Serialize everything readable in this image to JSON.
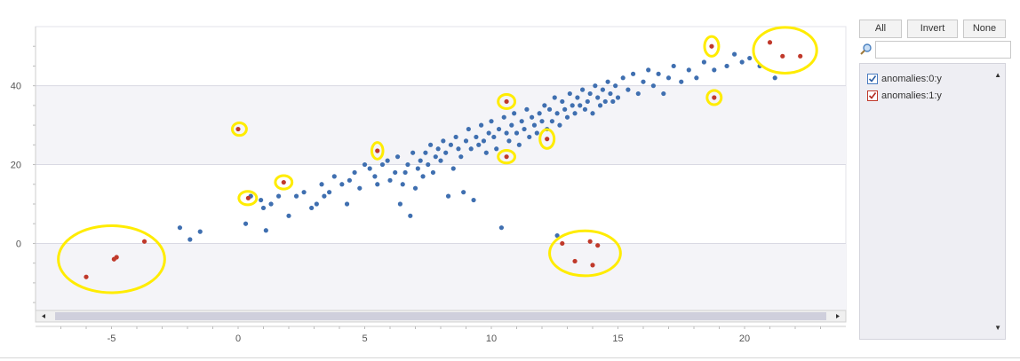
{
  "panel": {
    "all_label": "All",
    "invert_label": "Invert",
    "none_label": "None",
    "search_placeholder": "",
    "series": [
      {
        "name": "anomalies:0:y",
        "checked": true,
        "check_color": "#4a7cc0"
      },
      {
        "name": "anomalies:1:y",
        "checked": true,
        "check_color": "#c0392b"
      }
    ]
  },
  "colors": {
    "normal": "#3f6fb0",
    "anomaly": "#c0392b",
    "highlight": "#ffec00",
    "band": "#f4f4f8",
    "grid": "#d9d9e3"
  },
  "chart_data": {
    "type": "scatter",
    "xlim": [
      -8,
      24
    ],
    "ylim": [
      -17,
      55
    ],
    "xticks": [
      -5,
      0,
      5,
      10,
      15,
      20
    ],
    "yticks": [
      0,
      20,
      40
    ],
    "grid": true,
    "legend": "side-panel",
    "series": [
      {
        "name": "anomalies:0:y",
        "points": [
          [
            -2.3,
            4
          ],
          [
            -1.9,
            1
          ],
          [
            -1.5,
            3
          ],
          [
            0.3,
            5
          ],
          [
            0.5,
            12
          ],
          [
            0.9,
            11
          ],
          [
            1.3,
            10
          ],
          [
            1.0,
            9
          ],
          [
            1.1,
            3.3
          ],
          [
            1.6,
            12
          ],
          [
            2.0,
            7
          ],
          [
            2.3,
            12
          ],
          [
            2.6,
            13
          ],
          [
            2.9,
            9
          ],
          [
            3.1,
            10
          ],
          [
            3.4,
            12
          ],
          [
            3.3,
            15
          ],
          [
            3.6,
            13
          ],
          [
            3.8,
            17
          ],
          [
            4.1,
            15
          ],
          [
            4.3,
            10
          ],
          [
            4.4,
            16
          ],
          [
            4.6,
            18
          ],
          [
            4.8,
            14
          ],
          [
            5.0,
            20
          ],
          [
            5.2,
            19
          ],
          [
            5.4,
            17
          ],
          [
            5.5,
            15
          ],
          [
            5.7,
            20
          ],
          [
            5.9,
            21
          ],
          [
            6.0,
            16
          ],
          [
            6.2,
            18
          ],
          [
            6.3,
            22
          ],
          [
            6.4,
            10
          ],
          [
            6.5,
            15
          ],
          [
            6.6,
            18
          ],
          [
            6.7,
            20
          ],
          [
            6.8,
            7
          ],
          [
            6.9,
            23
          ],
          [
            7.0,
            14
          ],
          [
            7.1,
            19
          ],
          [
            7.2,
            21
          ],
          [
            7.3,
            17
          ],
          [
            7.4,
            23
          ],
          [
            7.5,
            20
          ],
          [
            7.6,
            25
          ],
          [
            7.7,
            18
          ],
          [
            7.8,
            22
          ],
          [
            7.9,
            24
          ],
          [
            8.0,
            21
          ],
          [
            8.1,
            26
          ],
          [
            8.2,
            23
          ],
          [
            8.3,
            12
          ],
          [
            8.4,
            25
          ],
          [
            8.5,
            19
          ],
          [
            8.6,
            27
          ],
          [
            8.7,
            24
          ],
          [
            8.8,
            22
          ],
          [
            8.9,
            13
          ],
          [
            9.0,
            26
          ],
          [
            9.1,
            29
          ],
          [
            9.2,
            24
          ],
          [
            9.3,
            11
          ],
          [
            9.4,
            27
          ],
          [
            9.5,
            25
          ],
          [
            9.6,
            30
          ],
          [
            9.7,
            26
          ],
          [
            9.8,
            23
          ],
          [
            9.9,
            28
          ],
          [
            10.0,
            31
          ],
          [
            10.1,
            27
          ],
          [
            10.2,
            24
          ],
          [
            10.3,
            29
          ],
          [
            10.4,
            4
          ],
          [
            10.5,
            32
          ],
          [
            10.6,
            28
          ],
          [
            10.7,
            26
          ],
          [
            10.8,
            30
          ],
          [
            10.9,
            33
          ],
          [
            11.0,
            28
          ],
          [
            11.1,
            25
          ],
          [
            11.2,
            31
          ],
          [
            11.3,
            29
          ],
          [
            11.4,
            34
          ],
          [
            11.5,
            27
          ],
          [
            11.6,
            32
          ],
          [
            11.7,
            30
          ],
          [
            11.8,
            28
          ],
          [
            11.9,
            33
          ],
          [
            12.0,
            31
          ],
          [
            12.1,
            35
          ],
          [
            12.2,
            29
          ],
          [
            12.3,
            34
          ],
          [
            12.4,
            31
          ],
          [
            12.5,
            37
          ],
          [
            12.6,
            33
          ],
          [
            12.7,
            30
          ],
          [
            12.8,
            36
          ],
          [
            12.9,
            34
          ],
          [
            13.0,
            32
          ],
          [
            13.1,
            38
          ],
          [
            13.2,
            35
          ],
          [
            13.3,
            33
          ],
          [
            13.4,
            37
          ],
          [
            13.5,
            35
          ],
          [
            13.6,
            39
          ],
          [
            13.7,
            34
          ],
          [
            13.8,
            36
          ],
          [
            13.9,
            38
          ],
          [
            14.0,
            33
          ],
          [
            14.1,
            40
          ],
          [
            14.2,
            37
          ],
          [
            14.3,
            35
          ],
          [
            14.4,
            39
          ],
          [
            14.5,
            36
          ],
          [
            14.6,
            41
          ],
          [
            14.7,
            38
          ],
          [
            14.8,
            36
          ],
          [
            14.9,
            40
          ],
          [
            15.0,
            37
          ],
          [
            15.2,
            42
          ],
          [
            15.4,
            39
          ],
          [
            15.6,
            43
          ],
          [
            15.8,
            38
          ],
          [
            16.0,
            41
          ],
          [
            16.2,
            44
          ],
          [
            16.4,
            40
          ],
          [
            16.6,
            43
          ],
          [
            16.8,
            38
          ],
          [
            17.0,
            42
          ],
          [
            17.2,
            45
          ],
          [
            17.5,
            41
          ],
          [
            17.8,
            44
          ],
          [
            18.1,
            42
          ],
          [
            18.4,
            46
          ],
          [
            18.8,
            44
          ],
          [
            19.3,
            45
          ],
          [
            19.6,
            48
          ],
          [
            19.9,
            46
          ],
          [
            20.2,
            47
          ],
          [
            20.6,
            45
          ],
          [
            21.2,
            42
          ],
          [
            12.6,
            2
          ]
        ]
      },
      {
        "name": "anomalies:1:y",
        "points": [
          [
            -6.0,
            -8.5
          ],
          [
            -4.9,
            -4
          ],
          [
            -4.8,
            -3.5
          ],
          [
            -3.7,
            0.5
          ],
          [
            0.0,
            29
          ],
          [
            0.4,
            11.5
          ],
          [
            1.8,
            15.5
          ],
          [
            5.5,
            23.5
          ],
          [
            10.6,
            36
          ],
          [
            10.6,
            22
          ],
          [
            12.2,
            26.5
          ],
          [
            12.8,
            0
          ],
          [
            13.3,
            -4.5
          ],
          [
            13.9,
            0.5
          ],
          [
            14.0,
            -5.5
          ],
          [
            14.2,
            -0.5
          ],
          [
            18.7,
            50
          ],
          [
            18.8,
            37
          ],
          [
            21.0,
            51
          ],
          [
            21.5,
            47.5
          ],
          [
            22.2,
            47.5
          ]
        ]
      }
    ],
    "highlights": [
      {
        "x": -5.0,
        "y": -4,
        "rx": 2.1,
        "ry": 8.5
      },
      {
        "x": 0.05,
        "y": 29,
        "rx": 0.28,
        "ry": 1.6
      },
      {
        "x": 0.38,
        "y": 11.5,
        "rx": 0.35,
        "ry": 1.7
      },
      {
        "x": 1.8,
        "y": 15.5,
        "rx": 0.33,
        "ry": 1.7
      },
      {
        "x": 5.5,
        "y": 23.5,
        "rx": 0.22,
        "ry": 2.1
      },
      {
        "x": 10.6,
        "y": 36,
        "rx": 0.33,
        "ry": 1.8
      },
      {
        "x": 10.6,
        "y": 22,
        "rx": 0.33,
        "ry": 1.6
      },
      {
        "x": 12.2,
        "y": 26.5,
        "rx": 0.28,
        "ry": 2.4
      },
      {
        "x": 13.7,
        "y": -2.5,
        "rx": 1.4,
        "ry": 5.7
      },
      {
        "x": 18.7,
        "y": 50,
        "rx": 0.28,
        "ry": 2.5
      },
      {
        "x": 18.8,
        "y": 37,
        "rx": 0.28,
        "ry": 1.8
      },
      {
        "x": 21.6,
        "y": 49,
        "rx": 1.25,
        "ry": 5.8
      }
    ]
  }
}
